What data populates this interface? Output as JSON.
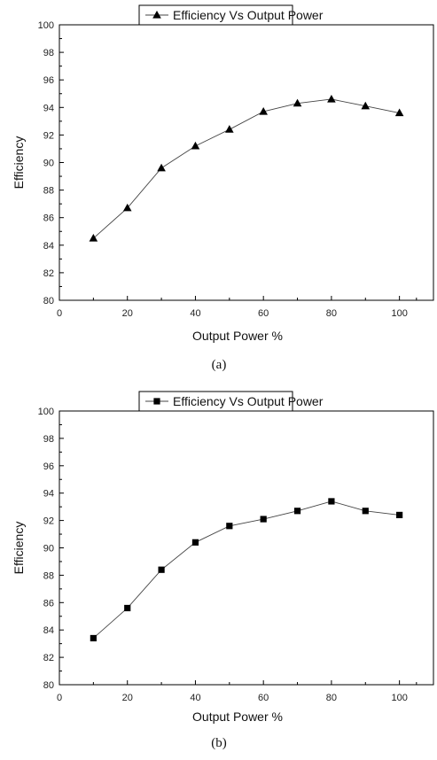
{
  "chart_data": [
    {
      "type": "line",
      "marker": "triangle",
      "caption": "(a)",
      "xlabel": "Output Power %",
      "ylabel": "Efficiency",
      "xlim": [
        0,
        110
      ],
      "ylim": [
        80,
        100
      ],
      "xticks": [
        0,
        20,
        40,
        60,
        80,
        100
      ],
      "yticks": [
        80,
        82,
        84,
        86,
        88,
        90,
        92,
        94,
        96,
        98,
        100
      ],
      "grid": false,
      "legend": "top",
      "series": [
        {
          "name": "Efficiency Vs Output Power",
          "x": [
            10,
            20,
            30,
            40,
            50,
            60,
            70,
            80,
            90,
            100
          ],
          "y": [
            84.5,
            86.7,
            89.6,
            91.2,
            92.4,
            93.7,
            94.3,
            94.6,
            94.1,
            93.6
          ]
        }
      ]
    },
    {
      "type": "line",
      "marker": "square",
      "caption": "(b)",
      "xlabel": "Output Power %",
      "ylabel": "Efficiency",
      "xlim": [
        0,
        110
      ],
      "ylim": [
        80,
        100
      ],
      "xticks": [
        0,
        20,
        40,
        60,
        80,
        100
      ],
      "yticks": [
        80,
        82,
        84,
        86,
        88,
        90,
        92,
        94,
        96,
        98,
        100
      ],
      "grid": false,
      "legend": "top",
      "series": [
        {
          "name": "Efficiency Vs Output Power",
          "x": [
            10,
            20,
            30,
            40,
            50,
            60,
            70,
            80,
            90,
            100
          ],
          "y": [
            83.4,
            85.6,
            88.4,
            90.4,
            91.6,
            92.1,
            92.7,
            93.4,
            92.7,
            92.4
          ]
        }
      ]
    }
  ]
}
